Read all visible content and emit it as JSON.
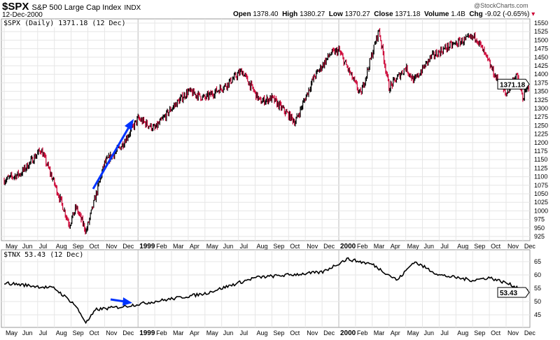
{
  "header": {
    "symbol": "$SPX",
    "name": "S&P 500 Large Cap Index",
    "exchange": "INDX",
    "date": "12-Dec-2000",
    "watermark": "@StockCharts.com",
    "open_label": "Open",
    "open": "1378.40",
    "high_label": "High",
    "high": "1380.27",
    "low_label": "Low",
    "low": "1370.27",
    "close_label": "Close",
    "close": "1371.18",
    "volume_label": "Volume",
    "volume": "1.4B",
    "chg_label": "Chg",
    "chg": "-9.02 (-0.65%)"
  },
  "chart_data": [
    {
      "type": "candlestick",
      "legend": "$SPX (Daily) 1371.18 (12 Dec)",
      "last_label": "1371.18",
      "ylim": [
        925,
        1550
      ],
      "yticks": [
        925,
        950,
        975,
        1000,
        1025,
        1050,
        1075,
        1100,
        1125,
        1150,
        1175,
        1200,
        1225,
        1250,
        1275,
        1300,
        1325,
        1350,
        1375,
        1400,
        1425,
        1450,
        1475,
        1500,
        1525,
        1550
      ],
      "x_months": [
        "May",
        "Jun",
        "Jul",
        "Aug",
        "Sep",
        "Oct",
        "Nov",
        "Dec",
        "1999",
        "Feb",
        "Mar",
        "Apr",
        "May",
        "Jun",
        "Jul",
        "Aug",
        "Sep",
        "Oct",
        "Nov",
        "Dec",
        "2000",
        "Feb",
        "Mar",
        "Apr",
        "May",
        "Jun",
        "Jul",
        "Aug",
        "Sep",
        "Oct",
        "Nov",
        "Dec"
      ],
      "keypoints": [
        [
          0,
          1090
        ],
        [
          1,
          1110
        ],
        [
          2.2,
          1180
        ],
        [
          3,
          1080
        ],
        [
          3.9,
          960
        ],
        [
          4.3,
          1010
        ],
        [
          4.9,
          940
        ],
        [
          6,
          1140
        ],
        [
          7,
          1190
        ],
        [
          8,
          1270
        ],
        [
          9,
          1240
        ],
        [
          10,
          1300
        ],
        [
          11,
          1350
        ],
        [
          12,
          1330
        ],
        [
          13.3,
          1370
        ],
        [
          14.2,
          1410
        ],
        [
          15.3,
          1320
        ],
        [
          16,
          1330
        ],
        [
          17.4,
          1260
        ],
        [
          18.5,
          1390
        ],
        [
          19.5,
          1460
        ],
        [
          20,
          1470
        ],
        [
          21.3,
          1340
        ],
        [
          22.4,
          1530
        ],
        [
          23,
          1360
        ],
        [
          24,
          1420
        ],
        [
          24.5,
          1380
        ],
        [
          25.5,
          1450
        ],
        [
          26.5,
          1480
        ],
        [
          27.5,
          1500
        ],
        [
          28.2,
          1510
        ],
        [
          29.5,
          1380
        ],
        [
          30,
          1340
        ],
        [
          30.6,
          1400
        ],
        [
          31,
          1330
        ],
        [
          31.4,
          1371.18
        ]
      ],
      "annotation": "blue up arrow Oct-Dec 1998",
      "colors": {
        "up": "#000000",
        "down": "#cc0033",
        "arrow": "#0033ff"
      }
    },
    {
      "type": "line",
      "legend": "$TNX 53.43 (12 Dec)",
      "last_label": "53.43",
      "ylim": [
        40,
        68
      ],
      "yticks": [
        45,
        50,
        55,
        60,
        65
      ],
      "keypoints": [
        [
          0,
          57
        ],
        [
          3,
          55
        ],
        [
          4.2,
          49
        ],
        [
          4.9,
          42
        ],
        [
          5.5,
          47
        ],
        [
          7,
          48
        ],
        [
          9,
          50
        ],
        [
          12,
          53
        ],
        [
          15,
          59
        ],
        [
          17,
          60
        ],
        [
          19,
          61
        ],
        [
          20.5,
          66
        ],
        [
          22,
          64
        ],
        [
          23.5,
          58
        ],
        [
          24.5,
          65
        ],
        [
          26,
          60
        ],
        [
          28,
          58
        ],
        [
          29,
          59
        ],
        [
          30,
          57
        ],
        [
          31.4,
          53.43
        ]
      ]
    }
  ]
}
